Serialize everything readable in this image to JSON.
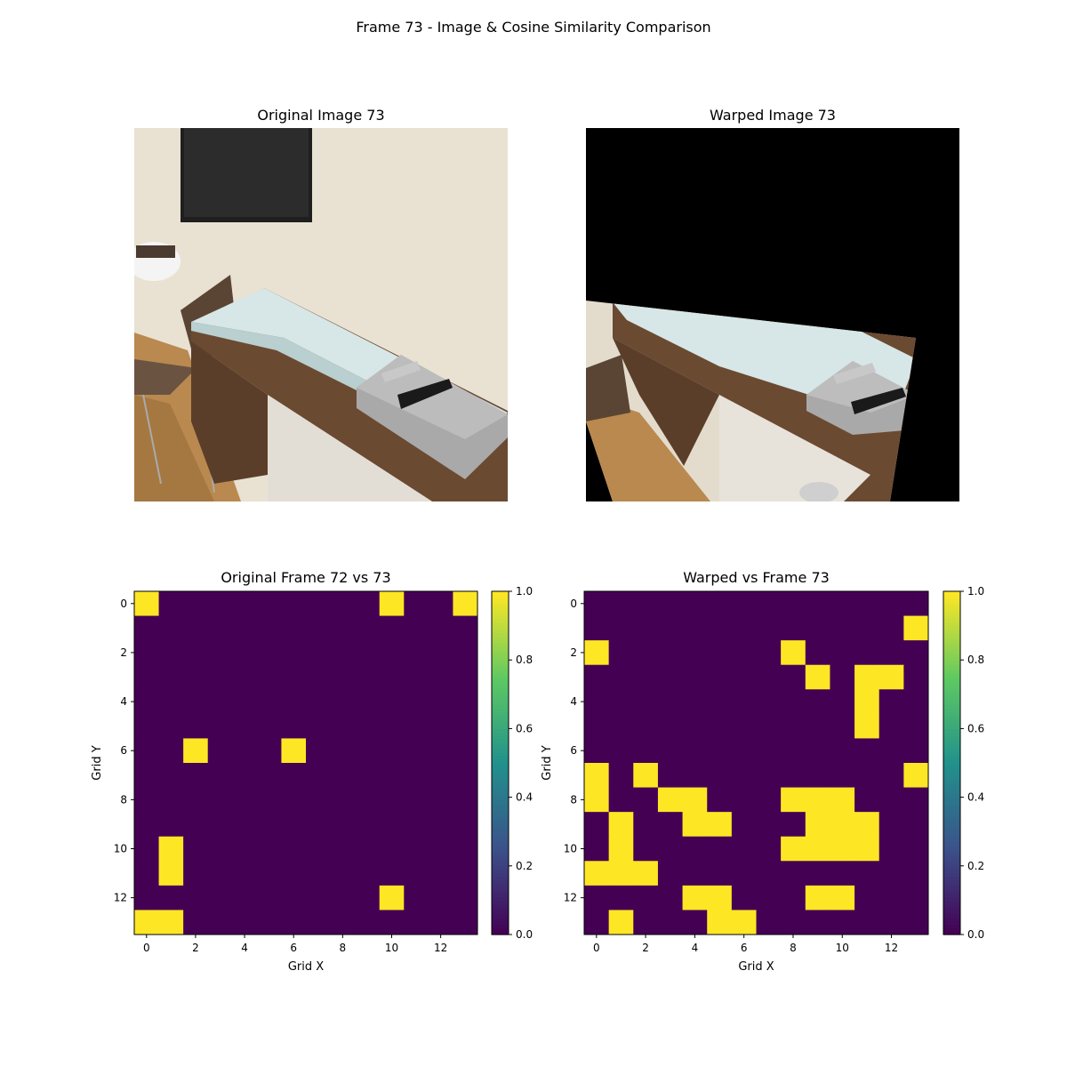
{
  "figure": {
    "title": "Frame 73 - Image & Cosine Similarity Comparison"
  },
  "panels": {
    "original_image": {
      "title": "Original Image 73"
    },
    "warped_image": {
      "title": "Warped Image 73"
    }
  },
  "chart_data": [
    {
      "type": "heatmap",
      "title": "Original Frame 72 vs 73",
      "xlabel": "Grid X",
      "ylabel": "Grid Y",
      "xticks": [
        0,
        2,
        4,
        6,
        8,
        10,
        12
      ],
      "yticks": [
        0,
        2,
        4,
        6,
        8,
        10,
        12
      ],
      "colormap": "viridis",
      "clim": [
        0.0,
        1.0
      ],
      "colorbar_ticks": [
        "0.0",
        "0.2",
        "0.4",
        "0.6",
        "0.8",
        "1.0"
      ],
      "grid": false,
      "values": [
        [
          1,
          0,
          0,
          0,
          0,
          0,
          0,
          0,
          0,
          0,
          1,
          0,
          0,
          1
        ],
        [
          0,
          0,
          0,
          0,
          0,
          0,
          0,
          0,
          0,
          0,
          0,
          0,
          0,
          0
        ],
        [
          0,
          0,
          0,
          0,
          0,
          0,
          0,
          0,
          0,
          0,
          0,
          0,
          0,
          0
        ],
        [
          0,
          0,
          0,
          0,
          0,
          0,
          0,
          0,
          0,
          0,
          0,
          0,
          0,
          0
        ],
        [
          0,
          0,
          0,
          0,
          0,
          0,
          0,
          0,
          0,
          0,
          0,
          0,
          0,
          0
        ],
        [
          0,
          0,
          0,
          0,
          0,
          0,
          0,
          0,
          0,
          0,
          0,
          0,
          0,
          0
        ],
        [
          0,
          0,
          1,
          0,
          0,
          0,
          1,
          0,
          0,
          0,
          0,
          0,
          0,
          0
        ],
        [
          0,
          0,
          0,
          0,
          0,
          0,
          0,
          0,
          0,
          0,
          0,
          0,
          0,
          0
        ],
        [
          0,
          0,
          0,
          0,
          0,
          0,
          0,
          0,
          0,
          0,
          0,
          0,
          0,
          0
        ],
        [
          0,
          0,
          0,
          0,
          0,
          0,
          0,
          0,
          0,
          0,
          0,
          0,
          0,
          0
        ],
        [
          0,
          1,
          0,
          0,
          0,
          0,
          0,
          0,
          0,
          0,
          0,
          0,
          0,
          0
        ],
        [
          0,
          1,
          0,
          0,
          0,
          0,
          0,
          0,
          0,
          0,
          0,
          0,
          0,
          0
        ],
        [
          0,
          0,
          0,
          0,
          0,
          0,
          0,
          0,
          0,
          0,
          1,
          0,
          0,
          0
        ],
        [
          1,
          1,
          0,
          0,
          0,
          0,
          0,
          0,
          0,
          0,
          0,
          0,
          0,
          0
        ]
      ]
    },
    {
      "type": "heatmap",
      "title": "Warped vs Frame 73",
      "xlabel": "Grid X",
      "ylabel": "Grid Y",
      "xticks": [
        0,
        2,
        4,
        6,
        8,
        10,
        12
      ],
      "yticks": [
        0,
        2,
        4,
        6,
        8,
        10,
        12
      ],
      "colormap": "viridis",
      "clim": [
        0.0,
        1.0
      ],
      "colorbar_ticks": [
        "0.0",
        "0.2",
        "0.4",
        "0.6",
        "0.8",
        "1.0"
      ],
      "grid": false,
      "values": [
        [
          0,
          0,
          0,
          0,
          0,
          0,
          0,
          0,
          0,
          0,
          0,
          0,
          0,
          0
        ],
        [
          0,
          0,
          0,
          0,
          0,
          0,
          0,
          0,
          0,
          0,
          0,
          0,
          0,
          1
        ],
        [
          1,
          0,
          0,
          0,
          0,
          0,
          0,
          0,
          1,
          0,
          0,
          0,
          0,
          0
        ],
        [
          0,
          0,
          0,
          0,
          0,
          0,
          0,
          0,
          0,
          1,
          0,
          1,
          1,
          0
        ],
        [
          0,
          0,
          0,
          0,
          0,
          0,
          0,
          0,
          0,
          0,
          0,
          1,
          0,
          0
        ],
        [
          0,
          0,
          0,
          0,
          0,
          0,
          0,
          0,
          0,
          0,
          0,
          1,
          0,
          0
        ],
        [
          0,
          0,
          0,
          0,
          0,
          0,
          0,
          0,
          0,
          0,
          0,
          0,
          0,
          0
        ],
        [
          1,
          0,
          1,
          0,
          0,
          0,
          0,
          0,
          0,
          0,
          0,
          0,
          0,
          1
        ],
        [
          1,
          0,
          0,
          1,
          1,
          0,
          0,
          0,
          1,
          1,
          1,
          0,
          0,
          0
        ],
        [
          0,
          1,
          0,
          0,
          1,
          1,
          0,
          0,
          0,
          1,
          1,
          1,
          0,
          0
        ],
        [
          0,
          1,
          0,
          0,
          0,
          0,
          0,
          0,
          1,
          1,
          1,
          1,
          0,
          0
        ],
        [
          1,
          1,
          1,
          0,
          0,
          0,
          0,
          0,
          0,
          0,
          0,
          0,
          0,
          0
        ],
        [
          0,
          0,
          0,
          0,
          1,
          1,
          0,
          0,
          0,
          1,
          1,
          0,
          0,
          0
        ],
        [
          0,
          1,
          0,
          0,
          0,
          1,
          1,
          0,
          0,
          0,
          0,
          0,
          0,
          0
        ]
      ]
    }
  ]
}
